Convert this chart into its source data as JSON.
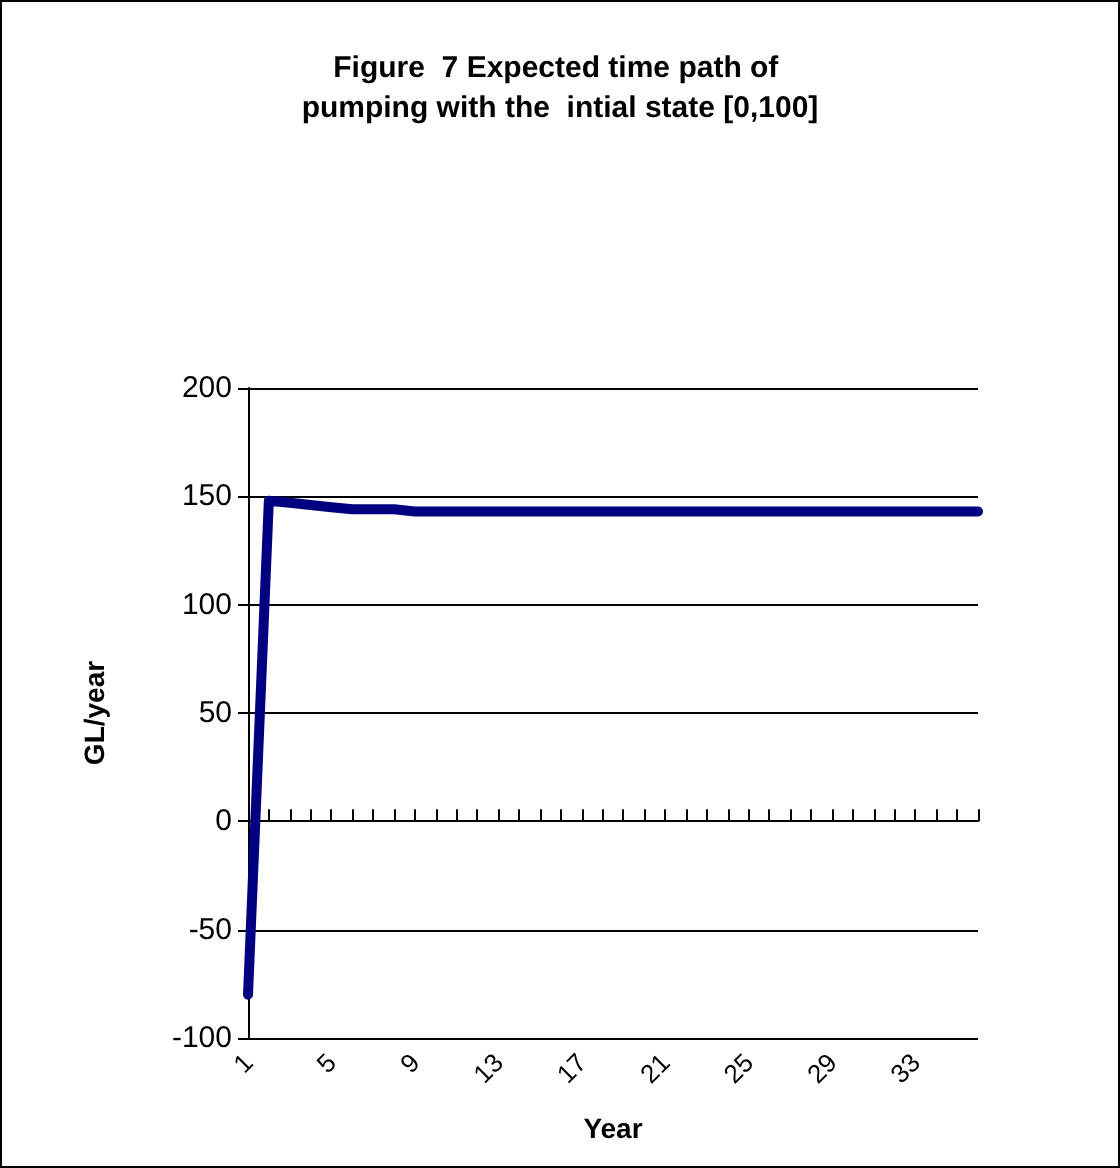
{
  "chart_data": {
    "type": "line",
    "title": "Figure  7 Expected time path of pumping with the  intial state [0,100]",
    "xlabel": "Year",
    "ylabel": "GL/year",
    "categories": [
      "1",
      null,
      null,
      null,
      "5",
      null,
      null,
      null,
      "9",
      null,
      null,
      null,
      "13",
      null,
      null,
      null,
      "17",
      null,
      null,
      null,
      "21",
      null,
      null,
      null,
      "25",
      null,
      null,
      null,
      "29",
      null,
      null,
      null,
      "33",
      null,
      null,
      null
    ],
    "series": [
      {
        "color": "#000080",
        "values": [
          -80,
          148,
          147,
          146,
          145,
          144,
          144,
          144,
          143,
          143,
          143,
          143,
          143,
          143,
          143,
          143,
          143,
          143,
          143,
          143,
          143,
          143,
          143,
          143,
          143,
          143,
          143,
          143,
          143,
          143,
          143,
          143,
          143,
          143,
          143,
          143
        ]
      }
    ],
    "ylim": [
      -100,
      200
    ],
    "yticks": [
      -100,
      -50,
      0,
      50,
      100,
      150,
      200
    ],
    "grid": "y",
    "marker": "none",
    "line_style": "solid"
  }
}
